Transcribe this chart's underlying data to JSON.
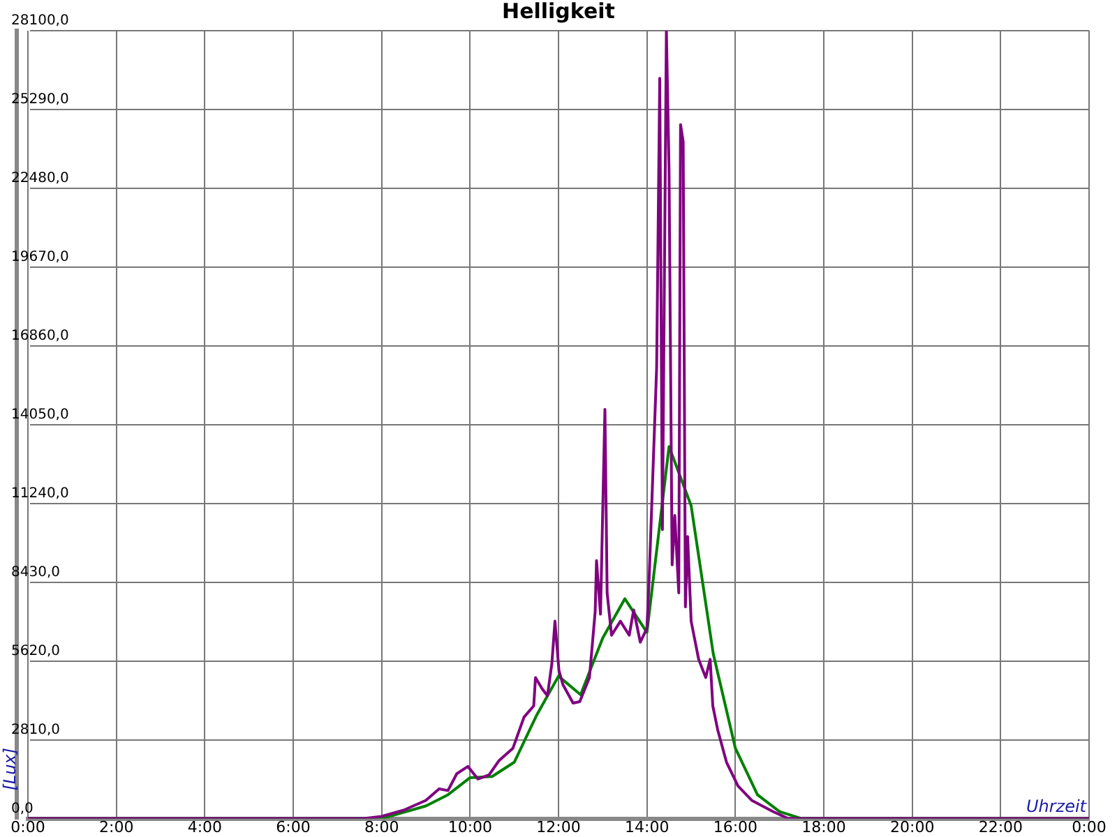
{
  "chart_data": {
    "type": "line",
    "title": "Helligkeit",
    "xlabel": "Uhrzeit",
    "ylabel": "[Lux]",
    "xlim": [
      0,
      24
    ],
    "xticks": [
      {
        "value": 0,
        "label": "0:00"
      },
      {
        "value": 2,
        "label": "2:00"
      },
      {
        "value": 4,
        "label": "4:00"
      },
      {
        "value": 6,
        "label": "6:00"
      },
      {
        "value": 8,
        "label": "8:00"
      },
      {
        "value": 10,
        "label": "10:00"
      },
      {
        "value": 12,
        "label": "12:00"
      },
      {
        "value": 14,
        "label": "14:00"
      },
      {
        "value": 16,
        "label": "16:00"
      },
      {
        "value": 18,
        "label": "18:00"
      },
      {
        "value": 20,
        "label": "20:00"
      },
      {
        "value": 22,
        "label": "22:00"
      },
      {
        "value": 24,
        "label": "0:00"
      }
    ],
    "ylim": [
      0,
      28100
    ],
    "yticks": [
      {
        "value": 0,
        "label": "0,0"
      },
      {
        "value": 2810,
        "label": "2810,0"
      },
      {
        "value": 5620,
        "label": "5620,0"
      },
      {
        "value": 8430,
        "label": "8430,0"
      },
      {
        "value": 11240,
        "label": "11240,0"
      },
      {
        "value": 14050,
        "label": "14050,0"
      },
      {
        "value": 16860,
        "label": "16860,0"
      },
      {
        "value": 19670,
        "label": "19670,0"
      },
      {
        "value": 22480,
        "label": "22480,0"
      },
      {
        "value": 25290,
        "label": "25290,0"
      },
      {
        "value": 28100,
        "label": "28100,0"
      }
    ],
    "grid": true,
    "legend": false,
    "line_style": "solid",
    "series": [
      {
        "color": "#800080",
        "x": [
          0,
          7.6,
          8.0,
          8.5,
          9.0,
          9.3,
          9.5,
          9.7,
          9.95,
          10.18,
          10.43,
          10.65,
          10.97,
          11.22,
          11.44,
          11.48,
          11.63,
          11.75,
          11.85,
          11.92,
          12.01,
          12.1,
          12.33,
          12.48,
          12.7,
          12.83,
          12.86,
          12.95,
          13.05,
          13.1,
          13.2,
          13.4,
          13.6,
          13.7,
          13.85,
          14.0,
          14.05,
          14.22,
          14.29,
          14.35,
          14.44,
          14.5,
          14.57,
          14.63,
          14.72,
          14.76,
          14.82,
          14.87,
          14.92,
          15.0,
          15.17,
          15.33,
          15.43,
          15.49,
          15.6,
          15.8,
          16.06,
          16.37,
          16.85,
          17.2,
          24
        ],
        "values": [
          0,
          0,
          80,
          300,
          650,
          1060,
          1000,
          1600,
          1860,
          1410,
          1560,
          2060,
          2510,
          3620,
          4020,
          5030,
          4630,
          4380,
          5530,
          7040,
          5280,
          4780,
          4120,
          4170,
          5030,
          7390,
          9200,
          7290,
          14590,
          8050,
          6540,
          7040,
          6540,
          7440,
          6290,
          6790,
          8550,
          16100,
          26400,
          10310,
          28100,
          23140,
          9050,
          10810,
          8050,
          24750,
          24140,
          7550,
          10060,
          7040,
          5680,
          5030,
          5680,
          4020,
          3170,
          2010,
          1160,
          650,
          250,
          0,
          0
        ]
      },
      {
        "color": "#008000",
        "x": [
          0,
          8.0,
          9.0,
          9.5,
          10.0,
          10.5,
          11.0,
          11.5,
          12.0,
          12.5,
          13.0,
          13.5,
          14.0,
          14.5,
          15.0,
          15.5,
          16.0,
          16.5,
          17.0,
          17.5,
          24
        ],
        "values": [
          0,
          0,
          450,
          850,
          1460,
          1500,
          2010,
          3670,
          5080,
          4420,
          6440,
          7840,
          6640,
          13270,
          11160,
          5880,
          2510,
          850,
          250,
          0,
          0
        ]
      }
    ]
  }
}
